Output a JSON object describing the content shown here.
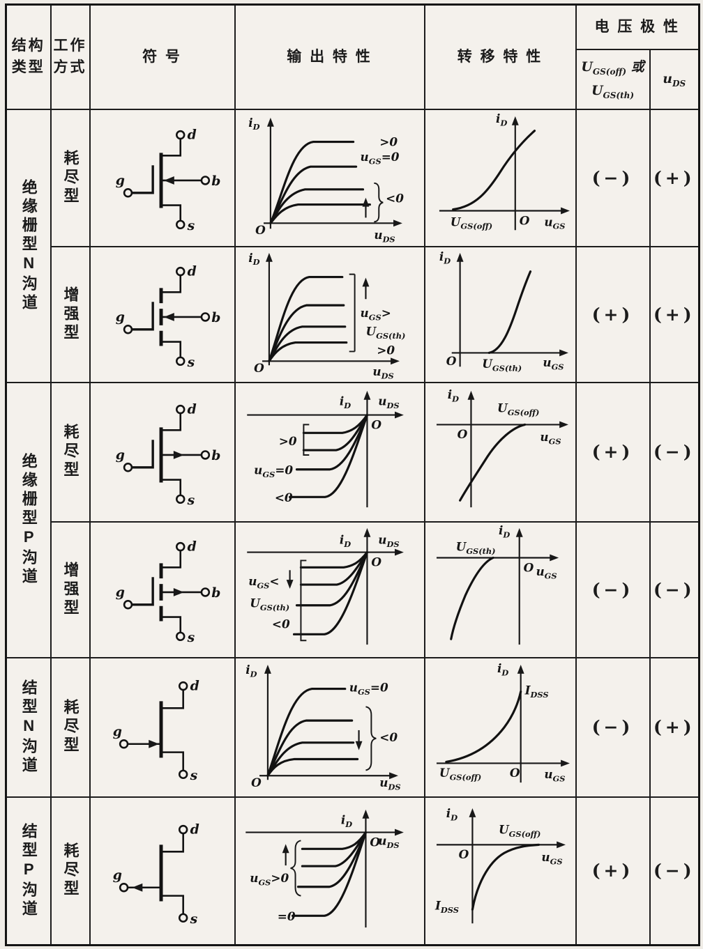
{
  "header": {
    "structure": "结构\n类型",
    "mode": "工作\n方式",
    "symbol": "符    号",
    "output": "输 出 特 性",
    "transfer": "转 移 特 性",
    "polarity": "电 压 极 性",
    "polarity_u_line1": "U{GS(off)} 或",
    "polarity_u_line2": "U{GS(th)}",
    "polarity_uds": "u{DS}"
  },
  "labels": {
    "id": "i{D}",
    "uds": "u{DS}",
    "ugs": "u{GS}",
    "origin": "O",
    "gt0": ">0",
    "lt0": "<0",
    "eq0": "=0",
    "ugs_eq0": "u{GS}=0",
    "ugs_gt": "u{GS}>",
    "ugs_lt": "u{GS}<",
    "ugs_gt0": "u{GS}>0",
    "ugsth": "U{GS(th)}",
    "ugsoff": "U{GS(off)}",
    "idss": "I{DSS}"
  },
  "terminals": {
    "d": "d",
    "g": "g",
    "s": "s",
    "b": "b"
  },
  "rows": [
    {
      "structure": "绝缘栅型N沟道",
      "mode": "耗尽型",
      "ugs_polarity": "(−)",
      "uds_polarity": "(+)"
    },
    {
      "mode": "增强型",
      "ugs_polarity": "(+)",
      "uds_polarity": "(+)"
    },
    {
      "structure": "绝缘栅型P沟道",
      "mode": "耗尽型",
      "ugs_polarity": "(+)",
      "uds_polarity": "(−)"
    },
    {
      "mode": "增强型",
      "ugs_polarity": "(−)",
      "uds_polarity": "(−)"
    },
    {
      "structure": "结型N沟道",
      "mode": "耗尽型",
      "ugs_polarity": "(−)",
      "uds_polarity": "(+)"
    },
    {
      "structure": "结型P沟道",
      "mode": "耗尽型",
      "ugs_polarity": "(+)",
      "uds_polarity": "(−)"
    }
  ]
}
